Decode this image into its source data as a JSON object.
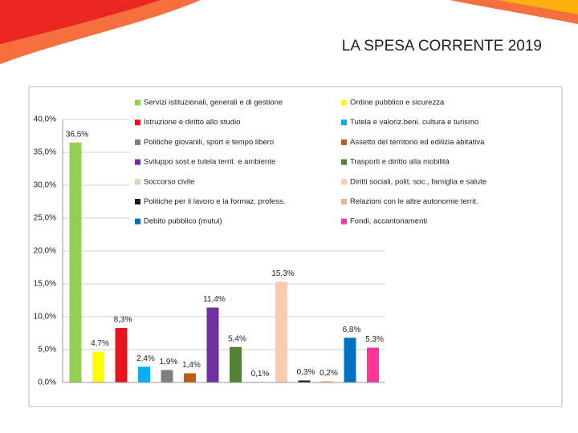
{
  "chart_data": {
    "type": "bar",
    "title": "LA SPESA CORRENTE 2019",
    "ylim": [
      0,
      40
    ],
    "yticks": [
      {
        "value": 0,
        "label": "0,0%"
      },
      {
        "value": 5,
        "label": "5,0%"
      },
      {
        "value": 10,
        "label": "10,0%"
      },
      {
        "value": 15,
        "label": "15,0%"
      },
      {
        "value": 20,
        "label": "20,0%"
      },
      {
        "value": 25,
        "label": "25,0%"
      },
      {
        "value": 30,
        "label": "30,0%"
      },
      {
        "value": 35,
        "label": "35,0%"
      },
      {
        "value": 40,
        "label": "40,0%"
      }
    ],
    "grid": true,
    "legend": "top",
    "series": [
      {
        "name": "Servizi istituzionali, generali e di gestione",
        "color": "#92d050",
        "values": [
          36.5
        ],
        "value_labels": [
          "36,5%"
        ]
      },
      {
        "name": "Ordine pubblico e sicurezza",
        "color": "#ffff00",
        "values": [
          4.7
        ],
        "value_labels": [
          "4,7%"
        ]
      },
      {
        "name": "Istruzione e diritto allo studio",
        "color": "#e8141c",
        "values": [
          8.3
        ],
        "value_labels": [
          "8,3%"
        ]
      },
      {
        "name": "Tutela e valoriz.beni. cultura e turismo",
        "color": "#00b0f0",
        "values": [
          2.4
        ],
        "value_labels": [
          "2,4%"
        ]
      },
      {
        "name": "Politiche giovanili, sport e tempo libero",
        "color": "#7f7f7f",
        "values": [
          1.9
        ],
        "value_labels": [
          "1,9%"
        ]
      },
      {
        "name": "Assetto del territorio ed edilizia abitativa",
        "color": "#c55a11",
        "values": [
          1.4
        ],
        "value_labels": [
          "1,4%"
        ]
      },
      {
        "name": "Sviluppo sost.e tutela territ. e ambiente",
        "color": "#7030a0",
        "values": [
          11.4
        ],
        "value_labels": [
          "11,4%"
        ]
      },
      {
        "name": "Trasporti e diritto alla mobilità",
        "color": "#548235",
        "values": [
          5.4
        ],
        "value_labels": [
          "5,4%"
        ]
      },
      {
        "name": "Soccorso civile",
        "color": "#c5e0b4",
        "values": [
          0.1
        ],
        "value_labels": [
          "0,1%"
        ]
      },
      {
        "name": "Diritti sociali, polit. soc., famiglia e salute",
        "color": "#f8cbad",
        "values": [
          15.3
        ],
        "value_labels": [
          "15,3%"
        ]
      },
      {
        "name": "Politiche per il lavoro e la formaz. profess.",
        "color": "#1a1a1a",
        "values": [
          0.3
        ],
        "value_labels": [
          "0,3%"
        ]
      },
      {
        "name": "Relazioni con le altre autonomie territ.",
        "color": "#f4b183",
        "values": [
          0.2
        ],
        "value_labels": [
          "0,2%"
        ]
      },
      {
        "name": "Debito pubblico (mutui)",
        "color": "#0070c0",
        "values": [
          6.8
        ],
        "value_labels": [
          "6,8%"
        ]
      },
      {
        "name": "Fondi, accantonamenti",
        "color": "#ff3399",
        "values": [
          5.3
        ],
        "value_labels": [
          "5,3%"
        ]
      }
    ]
  }
}
